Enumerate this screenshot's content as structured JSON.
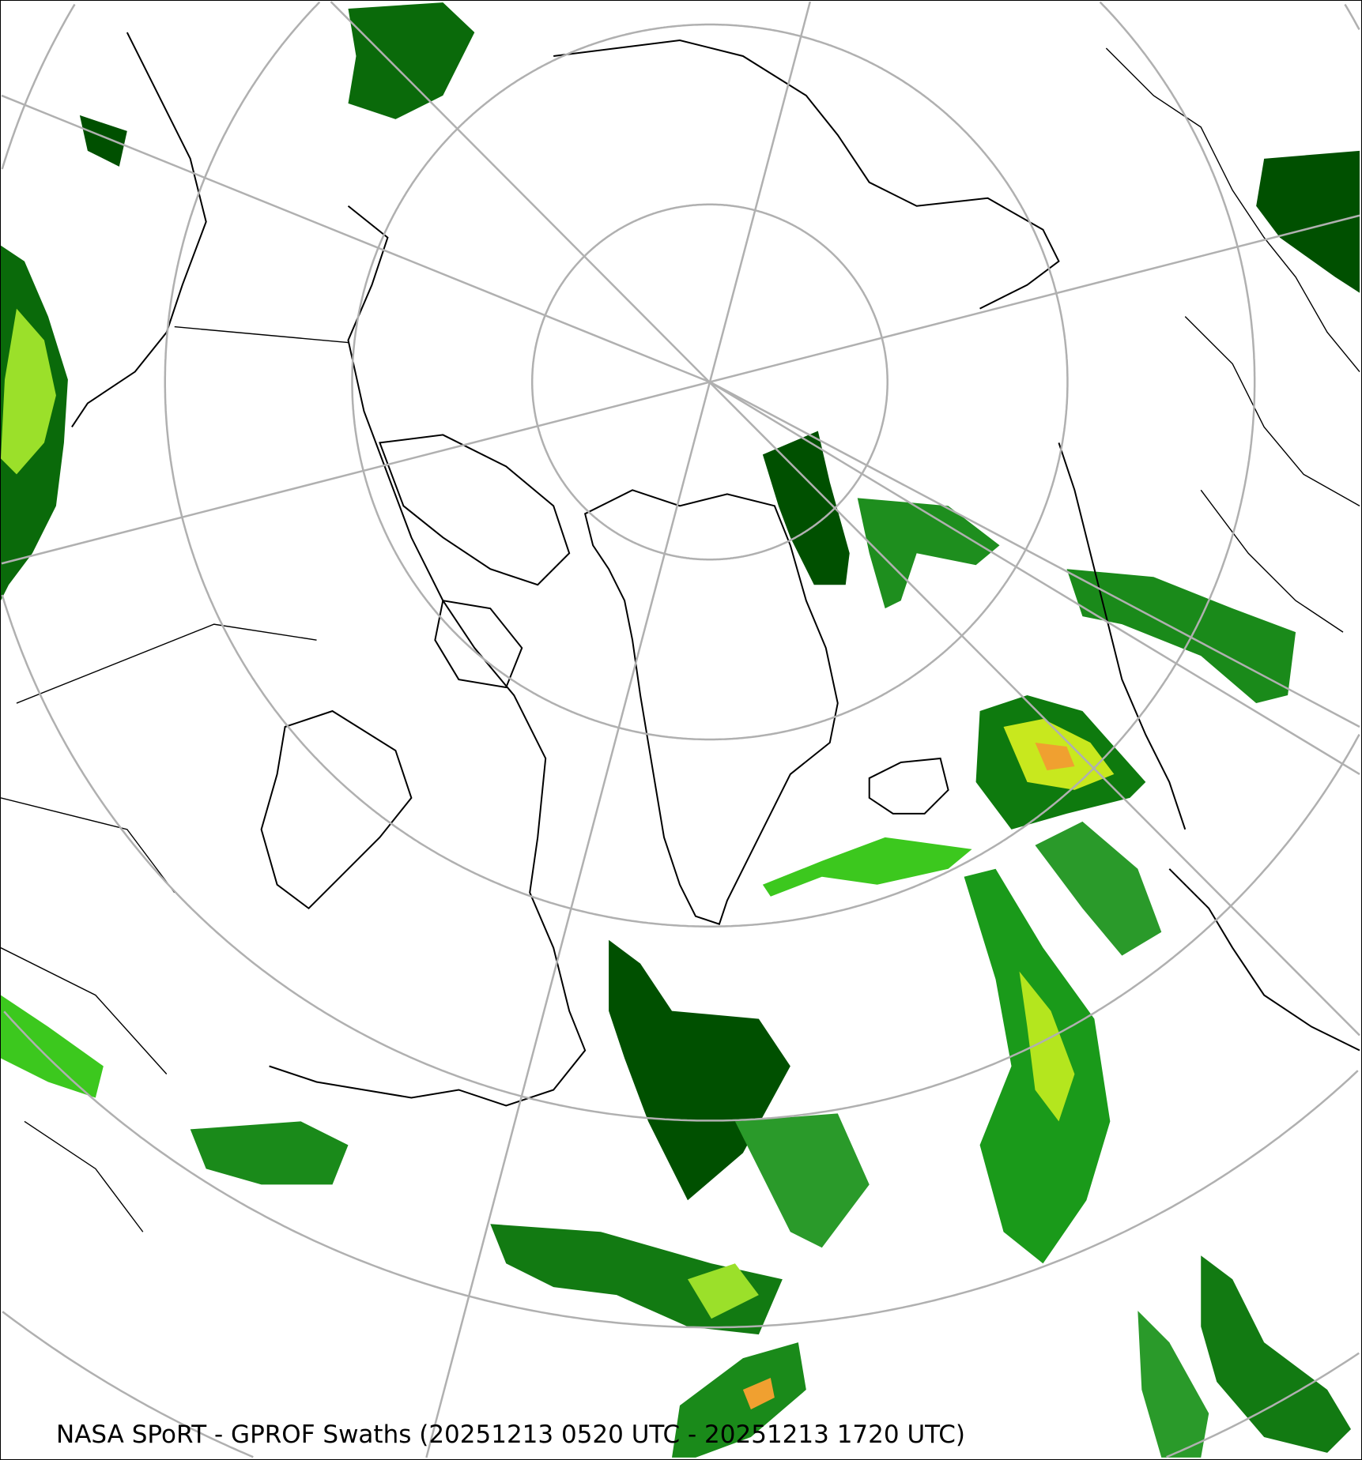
{
  "caption": "NASA SPoRT - GPROF Swaths (20251213 0520 UTC - 20251213 1720 UTC)",
  "map": {
    "projection": "north polar stereographic",
    "colors": {
      "gridlines": "#b0b0b0",
      "coastlines": "#000000",
      "precip_light": "#005a00",
      "precip_moderate": "#1e9e1e",
      "precip_bright": "#55e01e",
      "precip_heavy": "#e6f000",
      "precip_intense": "#f0a030"
    }
  }
}
